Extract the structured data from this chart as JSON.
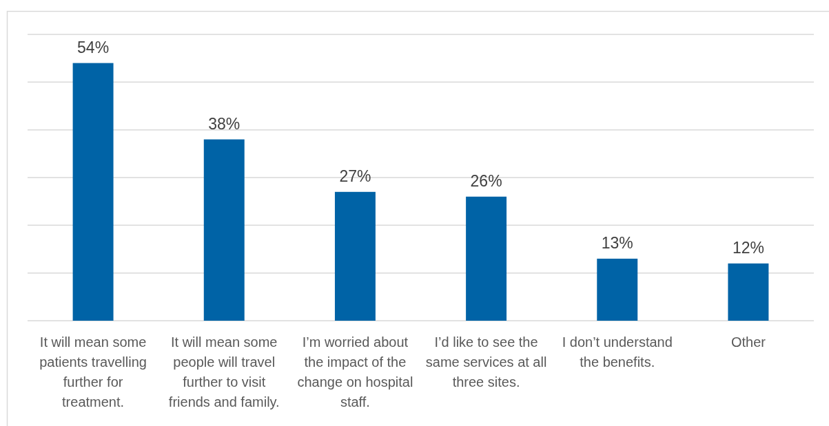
{
  "chart_data": {
    "type": "bar",
    "categories": [
      "It will mean some patients travelling further for treatment.",
      "It will mean some people will travel further to visit friends and family.",
      "I’m worried about the impact of the change on hospital staff.",
      "I’d like to see the same services at all three sites.",
      "I don’t understand the benefits.",
      "Other"
    ],
    "values": [
      54,
      38,
      27,
      26,
      13,
      12
    ],
    "value_labels": [
      "54%",
      "38%",
      "27%",
      "26%",
      "13%",
      "12%"
    ],
    "color": "#0063a6",
    "ylim": [
      0,
      60
    ],
    "yticks": [
      0,
      10,
      20,
      30,
      40,
      50,
      60
    ],
    "grid": "y",
    "tick_labels": "x"
  }
}
